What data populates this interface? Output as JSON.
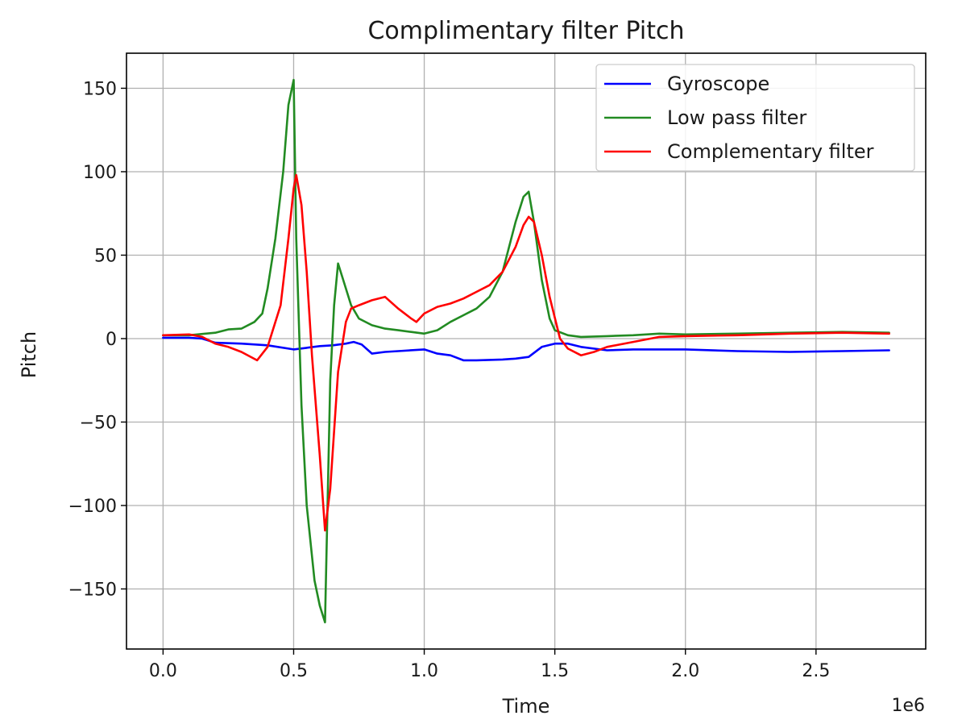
{
  "chart_data": {
    "type": "line",
    "title": "Complimentary filter Pitch",
    "xlabel": "Time",
    "ylabel": "Pitch",
    "x_offset_label": "1e6",
    "xlim": [
      -0.14,
      2.92
    ],
    "ylim": [
      -186,
      171
    ],
    "xticks": [
      0.0,
      0.5,
      1.0,
      1.5,
      2.0,
      2.5
    ],
    "xtick_labels": [
      "0.0",
      "0.5",
      "1.0",
      "1.5",
      "2.0",
      "2.5"
    ],
    "yticks": [
      150,
      100,
      50,
      0,
      -50,
      -100,
      -150
    ],
    "ytick_labels": [
      "150",
      "100",
      "50",
      "0",
      "−50",
      "−100",
      "−150"
    ],
    "grid": true,
    "legend_position": "upper right",
    "series": [
      {
        "name": "Gyroscope",
        "color": "#0000ff",
        "x": [
          0.0,
          0.1,
          0.15,
          0.2,
          0.3,
          0.4,
          0.5,
          0.55,
          0.6,
          0.65,
          0.7,
          0.73,
          0.76,
          0.8,
          0.85,
          0.9,
          1.0,
          1.05,
          1.1,
          1.15,
          1.2,
          1.3,
          1.35,
          1.4,
          1.45,
          1.5,
          1.55,
          1.6,
          1.7,
          1.8,
          2.0,
          2.2,
          2.4,
          2.6,
          2.78
        ],
        "y": [
          0.5,
          0.5,
          0.0,
          -2.5,
          -3.0,
          -4.0,
          -6.5,
          -5.5,
          -4.5,
          -4.0,
          -3.0,
          -2.0,
          -3.5,
          -9.0,
          -8.0,
          -7.5,
          -6.5,
          -9.0,
          -10.0,
          -13.0,
          -13.0,
          -12.5,
          -12.0,
          -11.0,
          -5.0,
          -3.0,
          -3.0,
          -5.0,
          -7.0,
          -6.5,
          -6.5,
          -7.5,
          -8.0,
          -7.5,
          -7.0
        ]
      },
      {
        "name": "Low pass filter",
        "color": "#228b22",
        "x": [
          0.0,
          0.1,
          0.2,
          0.25,
          0.3,
          0.35,
          0.38,
          0.4,
          0.43,
          0.46,
          0.48,
          0.5,
          0.51,
          0.53,
          0.55,
          0.58,
          0.6,
          0.62,
          0.64,
          0.655,
          0.67,
          0.69,
          0.72,
          0.75,
          0.8,
          0.85,
          0.9,
          0.95,
          1.0,
          1.05,
          1.1,
          1.15,
          1.2,
          1.25,
          1.3,
          1.35,
          1.38,
          1.4,
          1.42,
          1.45,
          1.48,
          1.5,
          1.55,
          1.6,
          1.7,
          1.8,
          1.9,
          2.0,
          2.2,
          2.4,
          2.6,
          2.78
        ],
        "y": [
          2.0,
          2.0,
          3.5,
          5.5,
          6.0,
          10.0,
          15.0,
          30.0,
          60.0,
          100.0,
          140.0,
          155.0,
          60.0,
          -40.0,
          -100.0,
          -145.0,
          -160.0,
          -170.0,
          -25.0,
          20.0,
          45.0,
          35.0,
          20.0,
          12.0,
          8.0,
          6.0,
          5.0,
          4.0,
          3.0,
          5.0,
          10.0,
          14.0,
          18.0,
          25.0,
          40.0,
          70.0,
          85.0,
          88.0,
          70.0,
          35.0,
          12.0,
          5.0,
          2.0,
          1.0,
          1.5,
          2.0,
          3.0,
          2.5,
          3.0,
          3.5,
          4.0,
          3.5
        ]
      },
      {
        "name": "Complementary filter",
        "color": "#ff0000",
        "x": [
          0.0,
          0.1,
          0.15,
          0.2,
          0.25,
          0.3,
          0.36,
          0.4,
          0.45,
          0.48,
          0.5,
          0.51,
          0.53,
          0.55,
          0.57,
          0.6,
          0.62,
          0.64,
          0.67,
          0.7,
          0.72,
          0.75,
          0.8,
          0.85,
          0.9,
          0.95,
          0.97,
          1.0,
          1.05,
          1.1,
          1.15,
          1.2,
          1.25,
          1.3,
          1.35,
          1.38,
          1.4,
          1.42,
          1.45,
          1.48,
          1.52,
          1.55,
          1.6,
          1.65,
          1.7,
          1.8,
          1.9,
          2.0,
          2.2,
          2.4,
          2.6,
          2.78
        ],
        "y": [
          2.0,
          2.5,
          1.0,
          -3.0,
          -5.0,
          -8.0,
          -13.0,
          -5.0,
          20.0,
          60.0,
          90.0,
          98.0,
          80.0,
          40.0,
          -10.0,
          -70.0,
          -115.0,
          -90.0,
          -20.0,
          10.0,
          18.0,
          20.0,
          23.0,
          25.0,
          18.0,
          12.0,
          10.0,
          15.0,
          19.0,
          21.0,
          24.0,
          28.0,
          32.0,
          40.0,
          55.0,
          68.0,
          73.0,
          70.0,
          50.0,
          25.0,
          0.0,
          -6.0,
          -10.0,
          -8.0,
          -5.0,
          -2.0,
          1.0,
          1.5,
          2.0,
          3.0,
          3.5,
          3.0
        ]
      }
    ]
  }
}
